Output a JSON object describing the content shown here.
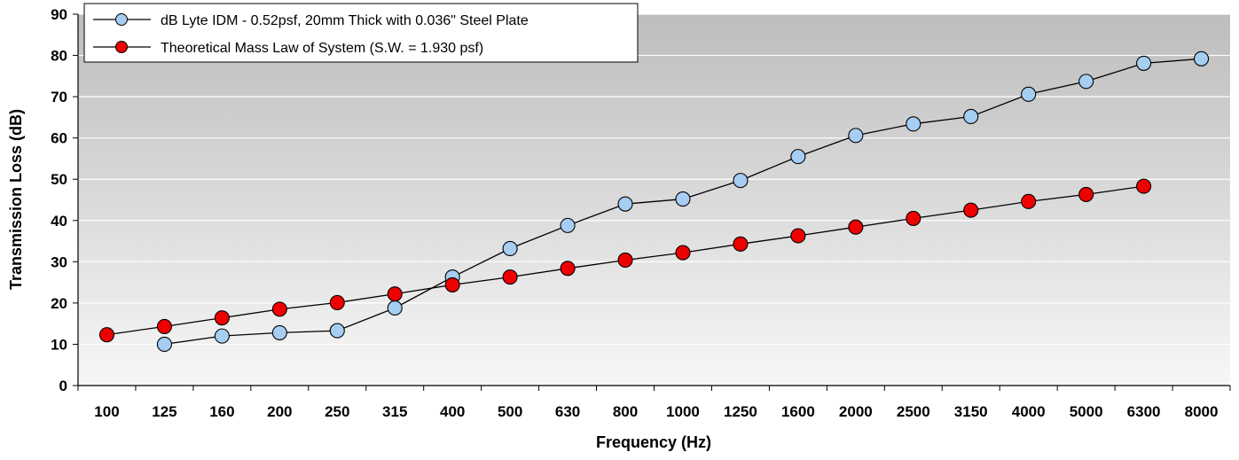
{
  "chart_data": {
    "type": "line",
    "categories": [
      "100",
      "125",
      "160",
      "200",
      "250",
      "315",
      "400",
      "500",
      "630",
      "800",
      "1000",
      "1250",
      "1600",
      "2000",
      "2500",
      "3150",
      "4000",
      "5000",
      "6300",
      "8000"
    ],
    "series": [
      {
        "name": "dB Lyte IDM - 0.52psf, 20mm Thick with 0.036\" Steel Plate",
        "color": "#a6cdf2",
        "values": [
          null,
          10,
          12,
          12.8,
          13.3,
          18.8,
          26.3,
          33.2,
          38.8,
          44,
          45.2,
          49.7,
          55.5,
          60.6,
          63.4,
          65.2,
          70.6,
          73.7,
          78.1,
          79.2
        ]
      },
      {
        "name": "Theoretical Mass Law of System (S.W. = 1.930 psf)",
        "color": "#ee0000",
        "values": [
          12.3,
          14.3,
          16.4,
          18.5,
          20.1,
          22.2,
          24.4,
          26.3,
          28.4,
          30.4,
          32.2,
          34.3,
          36.3,
          38.4,
          40.5,
          42.5,
          44.6,
          46.3,
          48.3,
          null
        ]
      }
    ],
    "xlabel": "Frequency (Hz)",
    "ylabel": "Transmission Loss (dB)",
    "ylim": [
      0,
      90
    ],
    "yticks": [
      0,
      10,
      20,
      30,
      40,
      50,
      60,
      70,
      80,
      90
    ],
    "grid": true,
    "legend_position": "top-left"
  }
}
